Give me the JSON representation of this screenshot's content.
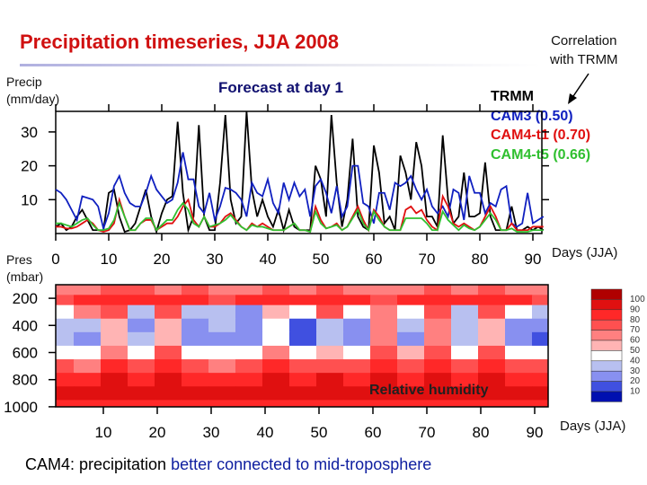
{
  "title": "Precipitation timeseries, JJA 2008",
  "correlation_note": [
    "Correlation",
    "with TRMM"
  ],
  "bottom_caption": {
    "prefix": "CAM4: precipitation ",
    "highlight": "better connected to mid-troposphere"
  },
  "chart_data": [
    {
      "type": "line",
      "title": "Forecast at day 1",
      "ylabel": [
        "Precip",
        "(mm/day)"
      ],
      "xlabel": "Days (JJA)",
      "xlim": [
        0,
        92
      ],
      "ylim": [
        0,
        36
      ],
      "xticks": [
        0,
        10,
        20,
        30,
        40,
        50,
        60,
        70,
        80,
        90
      ],
      "yticks": [
        10,
        20,
        30
      ],
      "legend_position": "right",
      "legend": [
        "TRMM",
        "CAM3 (0.50)",
        "CAM4-t1 (0.70)",
        "CAM4-t5 (0.66)"
      ],
      "series": [
        {
          "name": "TRMM",
          "color": "#000000",
          "values": [
            2,
            3,
            1,
            2,
            5,
            7,
            4,
            1,
            1,
            1,
            12,
            13,
            5,
            0.5,
            1,
            3,
            8,
            13,
            5,
            0.5,
            6,
            10,
            11,
            33,
            12,
            1,
            5,
            32,
            5,
            1,
            1,
            15,
            35,
            10,
            3,
            5,
            36,
            13,
            5,
            10,
            5,
            2,
            7,
            1,
            7,
            2,
            1,
            1,
            1,
            20,
            16,
            5,
            35,
            15,
            2,
            10,
            28,
            5,
            2,
            1,
            26,
            18,
            3,
            5,
            1,
            23,
            18,
            10,
            27,
            20,
            5,
            5,
            2,
            29,
            10,
            3,
            5,
            18,
            5,
            5,
            6,
            21,
            5,
            1,
            1,
            1,
            8,
            1,
            1,
            2,
            1,
            2,
            1
          ]
        },
        {
          "name": "CAM3 (0.50)",
          "color": "#1020c0",
          "values": [
            13,
            12,
            10,
            7,
            4,
            11,
            10.5,
            10,
            8,
            1.5,
            6,
            14,
            17,
            12,
            9,
            8,
            8,
            12,
            17,
            13,
            11,
            9,
            10,
            15,
            24,
            16,
            16,
            8,
            6,
            12,
            4,
            8,
            13.5,
            13,
            12,
            10,
            5,
            15,
            12,
            11,
            16,
            9,
            6,
            15,
            10,
            15,
            11,
            13,
            5,
            14,
            16,
            12,
            6,
            14,
            5,
            8,
            20,
            20,
            9,
            8,
            3,
            12,
            12,
            7,
            15,
            14,
            15,
            17,
            13,
            10,
            13,
            8,
            6,
            8,
            5,
            13,
            12,
            4,
            17,
            12,
            12,
            6,
            9,
            8,
            13,
            14,
            3,
            2,
            3,
            12,
            3,
            4,
            5
          ]
        },
        {
          "name": "CAM4-t1 (0.70)",
          "color": "#e01010",
          "values": [
            2,
            2,
            1.5,
            1.5,
            2,
            3,
            4,
            3,
            1,
            0.5,
            1,
            3,
            10,
            5,
            1,
            1,
            3,
            4,
            4,
            1,
            2,
            3,
            3,
            5,
            8,
            10,
            4,
            2,
            5,
            2,
            2,
            3,
            5,
            6,
            4,
            2,
            1,
            3,
            2,
            3,
            2,
            1,
            1,
            1,
            2,
            3,
            1,
            1,
            0.5,
            8,
            4,
            1.5,
            2,
            3,
            1,
            2,
            5,
            8,
            4,
            1,
            7,
            5,
            2,
            1,
            1,
            1,
            7,
            8,
            6,
            7,
            4,
            2,
            1,
            11,
            8,
            3,
            2,
            3,
            2,
            1,
            2,
            5,
            8,
            5,
            1,
            1,
            3,
            1,
            1,
            1,
            2,
            2,
            2
          ]
        },
        {
          "name": "CAM4-t5 (0.66)",
          "color": "#30c030",
          "values": [
            3,
            3,
            2.5,
            2,
            3,
            4,
            4.5,
            2.5,
            1,
            1,
            1.5,
            4,
            9,
            5,
            1,
            1,
            3,
            4.5,
            4.5,
            1,
            2.5,
            4,
            4,
            7,
            9,
            7,
            3,
            2,
            5,
            2,
            2.5,
            3,
            4,
            5.5,
            3.5,
            2,
            1,
            2.5,
            2,
            2,
            1.5,
            1,
            1,
            1,
            2,
            3,
            1,
            1,
            0.5,
            6.5,
            3,
            1.5,
            2,
            2.5,
            1,
            2,
            4.5,
            7,
            3,
            1,
            6.5,
            4,
            2,
            1,
            1,
            1,
            4.5,
            4.5,
            4.5,
            4.5,
            3,
            1,
            1,
            6.5,
            4,
            2.5,
            1,
            2.5,
            1.5,
            1,
            2,
            4,
            6,
            4,
            1,
            1,
            1.5,
            0.5,
            0.5,
            0.5,
            1,
            1,
            1
          ]
        }
      ]
    },
    {
      "type": "heatmap",
      "title": "Relative humidity",
      "ylabel": [
        "Pres",
        "(mbar)"
      ],
      "xlabel": "Days (JJA)",
      "xticks": [
        10,
        20,
        30,
        40,
        50,
        60,
        70,
        80,
        90
      ],
      "yticks": [
        200,
        400,
        600,
        800,
        1000
      ],
      "ylim": [
        1000,
        100
      ],
      "x": [
        2,
        7,
        12,
        17,
        22,
        27,
        32,
        37,
        42,
        47,
        52,
        57,
        62,
        67,
        72,
        77,
        82,
        87,
        92
      ],
      "y": [
        150,
        200,
        300,
        400,
        500,
        600,
        700,
        800,
        900,
        1000
      ],
      "z": [
        [
          60,
          65,
          70,
          70,
          65,
          70,
          60,
          65,
          70,
          65,
          70,
          65,
          60,
          65,
          70,
          65,
          70,
          65,
          60
        ],
        [
          75,
          80,
          85,
          85,
          80,
          85,
          75,
          80,
          85,
          80,
          85,
          80,
          75,
          80,
          85,
          80,
          85,
          80,
          75
        ],
        [
          40,
          60,
          70,
          30,
          75,
          30,
          30,
          25,
          50,
          40,
          70,
          40,
          65,
          40,
          70,
          35,
          70,
          45,
          30
        ],
        [
          30,
          30,
          55,
          25,
          50,
          20,
          30,
          20,
          40,
          15,
          30,
          25,
          60,
          30,
          60,
          30,
          55,
          25,
          20
        ],
        [
          30,
          25,
          55,
          30,
          55,
          20,
          25,
          25,
          40,
          15,
          35,
          25,
          60,
          25,
          65,
          30,
          55,
          25,
          15
        ],
        [
          45,
          40,
          65,
          45,
          70,
          40,
          40,
          45,
          60,
          40,
          55,
          45,
          70,
          50,
          75,
          45,
          70,
          45,
          40
        ],
        [
          70,
          65,
          80,
          70,
          80,
          70,
          65,
          70,
          80,
          70,
          75,
          75,
          80,
          75,
          85,
          75,
          80,
          75,
          70
        ],
        [
          85,
          85,
          90,
          85,
          90,
          85,
          85,
          85,
          90,
          85,
          90,
          85,
          90,
          85,
          90,
          85,
          90,
          85,
          85
        ],
        [
          95,
          95,
          95,
          95,
          95,
          95,
          95,
          95,
          95,
          95,
          95,
          95,
          95,
          95,
          95,
          95,
          95,
          95,
          95
        ],
        [
          88,
          88,
          88,
          88,
          88,
          88,
          88,
          88,
          88,
          88,
          88,
          88,
          88,
          88,
          88,
          88,
          88,
          88,
          88
        ]
      ],
      "colorbar": {
        "labels": [
          "100",
          "90",
          "80",
          "70",
          "60",
          "50",
          "40",
          "30",
          "20",
          "10"
        ],
        "colors": [
          "#b00000",
          "#e01010",
          "#ff2828",
          "#ff5050",
          "#ff8080",
          "#ffb4b4",
          "#ffffff",
          "#b8c0f0",
          "#8890f0",
          "#4050e0",
          "#0010b0"
        ]
      }
    }
  ]
}
